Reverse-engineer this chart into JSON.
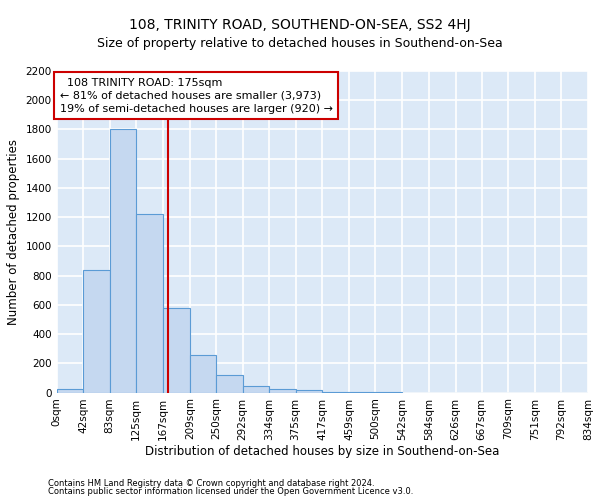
{
  "title": "108, TRINITY ROAD, SOUTHEND-ON-SEA, SS2 4HJ",
  "subtitle": "Size of property relative to detached houses in Southend-on-Sea",
  "xlabel": "Distribution of detached houses by size in Southend-on-Sea",
  "ylabel": "Number of detached properties",
  "footnote1": "Contains HM Land Registry data © Crown copyright and database right 2024.",
  "footnote2": "Contains public sector information licensed under the Open Government Licence v3.0.",
  "bin_edges": [
    0,
    42,
    83,
    125,
    167,
    209,
    250,
    292,
    334,
    375,
    417,
    459,
    500,
    542,
    584,
    626,
    667,
    709,
    751,
    792,
    834
  ],
  "bin_labels": [
    "0sqm",
    "42sqm",
    "83sqm",
    "125sqm",
    "167sqm",
    "209sqm",
    "250sqm",
    "292sqm",
    "334sqm",
    "375sqm",
    "417sqm",
    "459sqm",
    "500sqm",
    "542sqm",
    "584sqm",
    "626sqm",
    "667sqm",
    "709sqm",
    "751sqm",
    "792sqm",
    "834sqm"
  ],
  "bar_values": [
    25,
    840,
    1800,
    1220,
    580,
    260,
    120,
    45,
    25,
    20,
    5,
    2,
    1,
    0,
    0,
    0,
    0,
    0,
    0,
    0
  ],
  "bar_color": "#c5d8f0",
  "bar_edge_color": "#5b9bd5",
  "bg_color": "#dce9f7",
  "grid_color": "#ffffff",
  "ylim": [
    0,
    2200
  ],
  "yticks": [
    0,
    200,
    400,
    600,
    800,
    1000,
    1200,
    1400,
    1600,
    1800,
    2000,
    2200
  ],
  "property_size": 175,
  "property_label": "108 TRINITY ROAD: 175sqm",
  "pct_smaller": "81% of detached houses are smaller (3,973)",
  "pct_larger": "19% of semi-detached houses are larger (920)",
  "vline_color": "#cc0000",
  "annotation_box_color": "#cc0000",
  "title_fontsize": 10,
  "subtitle_fontsize": 9,
  "tick_fontsize": 7.5,
  "ylabel_fontsize": 8.5,
  "xlabel_fontsize": 8.5,
  "annot_fontsize": 8
}
